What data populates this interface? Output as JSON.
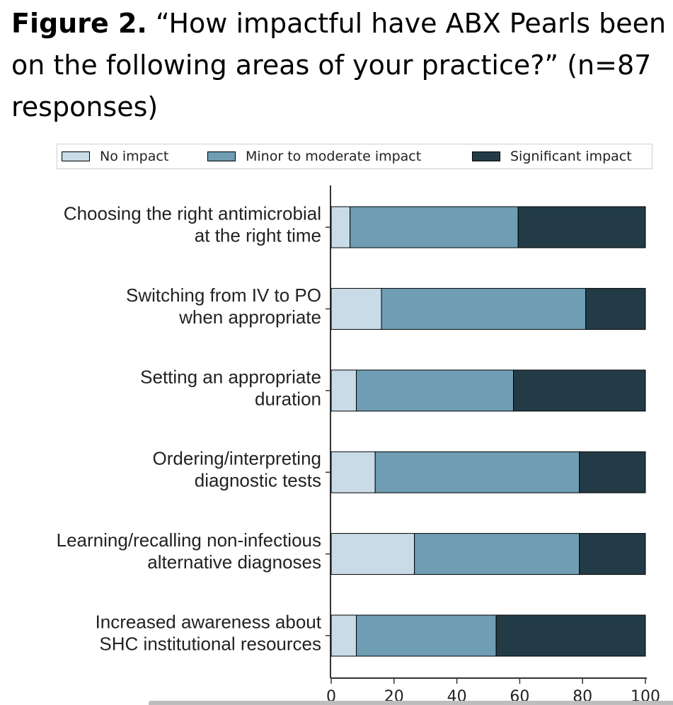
{
  "figure": {
    "label": "Figure 2.",
    "question": " “How impactful have ABX Pearls been on the following areas of your practice?” (n=87 responses)"
  },
  "colors": {
    "no_impact": "#c8dbe6",
    "minor_to_moderate": "#6f9db3",
    "significant": "#223b47",
    "axis": "#333333"
  },
  "chart_data": {
    "type": "bar",
    "orientation": "horizontal",
    "stacked": true,
    "categories": [
      [
        "Choosing the right antimicrobial",
        "at the right time"
      ],
      [
        "Switching from IV to PO",
        "when appropriate"
      ],
      [
        "Setting an appropriate",
        "duration"
      ],
      [
        "Ordering/interpreting",
        "diagnostic tests"
      ],
      [
        "Learning/recalling non-infectious",
        "alternative diagnoses"
      ],
      [
        "Increased awareness about",
        "SHC institutional resources"
      ]
    ],
    "series": [
      {
        "name": "No impact",
        "values": [
          6,
          16,
          8,
          14,
          26.5,
          8
        ]
      },
      {
        "name": "Minor to moderate impact",
        "values": [
          53.5,
          65,
          50,
          65,
          52.5,
          44.5
        ]
      },
      {
        "name": "Significant impact",
        "values": [
          40.5,
          19,
          42,
          21,
          21,
          47.5
        ]
      }
    ],
    "xlim": [
      0,
      100
    ],
    "xticks": [
      0,
      20,
      40,
      60,
      80,
      100
    ],
    "legend_position": "top",
    "grid": false
  }
}
